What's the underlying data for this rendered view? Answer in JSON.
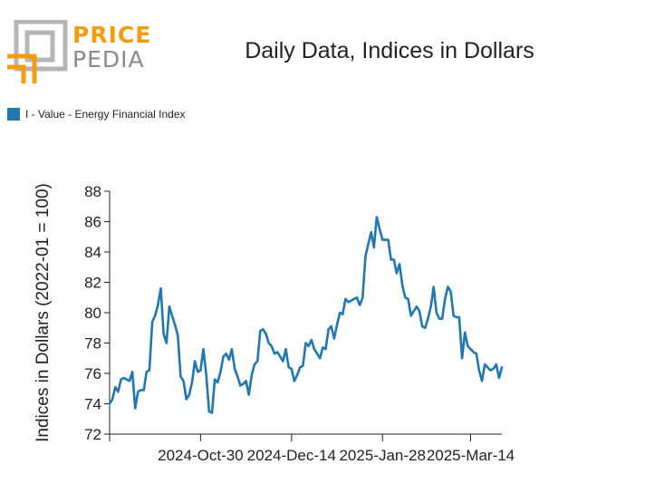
{
  "logo": {
    "line1": "PRICE",
    "line2": "PEDIA",
    "accent": "#f39c12",
    "gray": "#8a8a8a"
  },
  "chart_data": {
    "type": "line",
    "title": "Daily Data, Indices in Dollars",
    "ylabel": "Indices in Dollars (2022-01 = 100)",
    "xlabel": "",
    "ylim": [
      72,
      88
    ],
    "yticks": [
      72,
      74,
      76,
      78,
      80,
      82,
      84,
      86,
      88
    ],
    "xticks": [
      {
        "index": 0,
        "label": ""
      },
      {
        "index": 32,
        "label": "2024-Oct-30"
      },
      {
        "index": 64,
        "label": "2024-Dec-14"
      },
      {
        "index": 96,
        "label": "2025-Jan-28"
      },
      {
        "index": 127,
        "label": "2025-Mar-14"
      }
    ],
    "legend_position": "top-left",
    "grid": false,
    "series": [
      {
        "name": "I - Value - Energy Financial Index",
        "color": "#1f77b4",
        "values": [
          74.0,
          74.3,
          75.1,
          74.8,
          75.6,
          75.7,
          75.6,
          75.5,
          76.1,
          73.7,
          74.8,
          74.9,
          74.9,
          76.1,
          76.2,
          79.4,
          79.8,
          80.5,
          81.6,
          78.6,
          78.0,
          80.4,
          79.8,
          79.2,
          78.5,
          75.8,
          75.5,
          74.3,
          74.6,
          75.4,
          76.8,
          76.1,
          76.2,
          77.6,
          75.9,
          73.5,
          73.4,
          75.6,
          75.4,
          76.1,
          77.1,
          77.3,
          76.9,
          77.6,
          76.3,
          75.8,
          75.2,
          75.3,
          75.5,
          74.6,
          75.9,
          76.6,
          76.8,
          78.8,
          78.9,
          78.6,
          78.0,
          77.8,
          77.3,
          77.4,
          77.1,
          76.8,
          77.6,
          76.4,
          76.3,
          75.5,
          75.9,
          76.4,
          76.5,
          78.0,
          77.8,
          78.2,
          77.6,
          77.3,
          77.0,
          77.7,
          77.6,
          78.9,
          79.1,
          78.3,
          79.2,
          80.0,
          79.9,
          80.9,
          80.7,
          80.8,
          80.9,
          81.0,
          80.5,
          81.0,
          83.7,
          84.5,
          85.3,
          84.3,
          86.3,
          85.5,
          84.8,
          84.8,
          84.8,
          83.5,
          83.5,
          82.6,
          83.2,
          81.8,
          81.0,
          80.9,
          79.8,
          80.1,
          80.4,
          80.1,
          79.1,
          79.0,
          79.6,
          80.4,
          81.7,
          80.0,
          79.6,
          79.6,
          80.9,
          81.7,
          81.4,
          79.8,
          79.7,
          79.7,
          77.0,
          78.7,
          77.8,
          77.6,
          77.4,
          77.3,
          76.2,
          75.5,
          76.6,
          76.4,
          76.2,
          76.3,
          76.6,
          75.7,
          76.4
        ]
      }
    ]
  }
}
